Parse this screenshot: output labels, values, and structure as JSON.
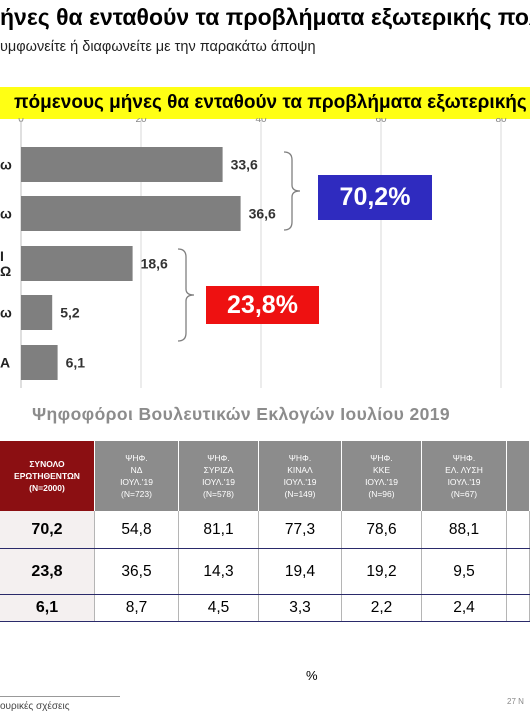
{
  "header": {
    "title": "ήνες θα ενταθούν τα προβλήματα εξωτερικής πολιτικ",
    "subtitle": "υμφωνείτε ή διαφωνείτε με την παρακάτω άποψη"
  },
  "banner": {
    "text": "πόμενους μήνες θα ενταθούν τα προβλήματα εξωτερικής π"
  },
  "chart_data": {
    "type": "bar",
    "orientation": "horizontal",
    "title": "πόμενους μήνες θα ενταθούν τα προβλήματα εξωτερικής π",
    "categories": [
      "ω",
      "ω",
      "Ι Ω",
      "ω",
      "Α"
    ],
    "values": [
      33.6,
      36.6,
      18.6,
      5.2,
      6.1
    ],
    "value_labels": [
      "33,6",
      "36,6",
      "18,6",
      "5,2",
      "6,1"
    ],
    "x_ticks": [
      "0",
      "20",
      "40",
      "60",
      "80"
    ],
    "xlim": [
      0,
      80
    ],
    "grid": "vertical",
    "bar_color": "#7f7f7f",
    "callouts": [
      {
        "text": "70,2%",
        "color": "#2f2bbf",
        "covers": [
          0,
          1
        ]
      },
      {
        "text": "23,8%",
        "color": "#ee1111",
        "covers": [
          2,
          3
        ]
      }
    ]
  },
  "table": {
    "title": "Ψηφοφόροι Βουλευτικών Εκλογών Ιουλίου 2019",
    "headers": [
      {
        "l1": "ΣΥΝΟΛΟ",
        "l2": "ΕΡΩΤΗΘΕΝΤΩΝ",
        "l3": "(N=2000)",
        "l4": ""
      },
      {
        "l1": "ΨΗΦ.",
        "l2": "ΝΔ",
        "l3": "ΙΟΥΛ.'19",
        "l4": "(N=723)"
      },
      {
        "l1": "ΨΗΦ.",
        "l2": "ΣΥΡΙΖΑ",
        "l3": "ΙΟΥΛ.'19",
        "l4": "(N=578)"
      },
      {
        "l1": "ΨΗΦ.",
        "l2": "ΚΙΝΑΛ",
        "l3": "ΙΟΥΛ.'19",
        "l4": "(N=149)"
      },
      {
        "l1": "ΨΗΦ.",
        "l2": "ΚΚΕ",
        "l3": "ΙΟΥΛ.'19",
        "l4": "(N=96)"
      },
      {
        "l1": "ΨΗΦ.",
        "l2": "ΕΛ. ΛΥΣΗ",
        "l3": "ΙΟΥΛ.'19",
        "l4": "(N=67)"
      }
    ],
    "rows": [
      [
        "70,2",
        "54,8",
        "81,1",
        "77,3",
        "78,6",
        "88,1"
      ],
      [
        "23,8",
        "36,5",
        "14,3",
        "19,4",
        "19,2",
        "9,5"
      ],
      [
        "6,1",
        "8,7",
        "4,5",
        "3,3",
        "2,2",
        "2,4"
      ]
    ]
  },
  "footer": {
    "percent": "%",
    "source": "ουρικές σχέσεις",
    "page": "27 Ν"
  }
}
